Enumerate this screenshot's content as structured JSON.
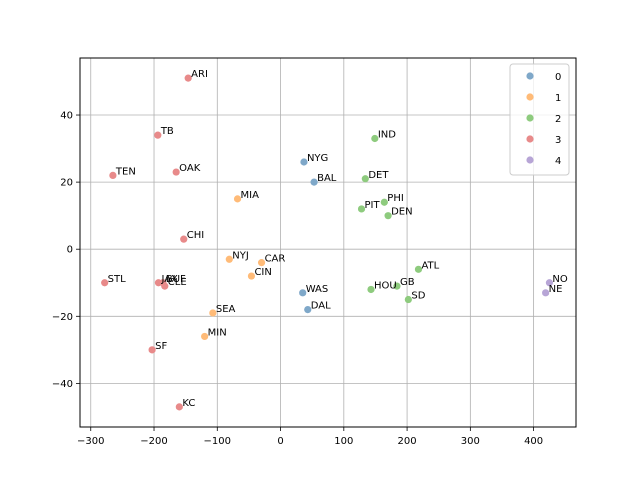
{
  "chart_data": {
    "type": "scatter",
    "title": "",
    "xlabel": "",
    "ylabel": "",
    "xlim": [
      -317,
      467
    ],
    "ylim": [
      -53,
      57
    ],
    "xticks": [
      -300,
      -200,
      -100,
      0,
      100,
      200,
      300,
      400
    ],
    "yticks": [
      -40,
      -20,
      0,
      20,
      40
    ],
    "grid": true,
    "legend_position": "top-right",
    "series": [
      {
        "name": "0",
        "color": "#7fa8c9",
        "points": [
          {
            "label": "NYG",
            "x": 37,
            "y": 26
          },
          {
            "label": "BAL",
            "x": 53,
            "y": 20
          },
          {
            "label": "WAS",
            "x": 35,
            "y": -13
          },
          {
            "label": "DAL",
            "x": 43,
            "y": -18
          }
        ]
      },
      {
        "name": "1",
        "color": "#ffbb78",
        "points": [
          {
            "label": "MIA",
            "x": -68,
            "y": 15
          },
          {
            "label": "NYJ",
            "x": -81,
            "y": -3
          },
          {
            "label": "CAR",
            "x": -30,
            "y": -4
          },
          {
            "label": "CIN",
            "x": -46,
            "y": -8
          },
          {
            "label": "SEA",
            "x": -107,
            "y": -19
          },
          {
            "label": "MIN",
            "x": -120,
            "y": -26
          }
        ]
      },
      {
        "name": "2",
        "color": "#8ecb7e",
        "points": [
          {
            "label": "IND",
            "x": 149,
            "y": 33
          },
          {
            "label": "DET",
            "x": 134,
            "y": 21
          },
          {
            "label": "PHI",
            "x": 164,
            "y": 14
          },
          {
            "label": "PIT",
            "x": 128,
            "y": 12
          },
          {
            "label": "DEN",
            "x": 170,
            "y": 10
          },
          {
            "label": "ATL",
            "x": 218,
            "y": -6
          },
          {
            "label": "GB",
            "x": 184,
            "y": -11
          },
          {
            "label": "HOU",
            "x": 143,
            "y": -12
          },
          {
            "label": "SD",
            "x": 202,
            "y": -15
          }
        ]
      },
      {
        "name": "3",
        "color": "#e88a8a",
        "points": [
          {
            "label": "ARI",
            "x": -146,
            "y": 51
          },
          {
            "label": "TB",
            "x": -194,
            "y": 34
          },
          {
            "label": "TEN",
            "x": -265,
            "y": 22
          },
          {
            "label": "OAK",
            "x": -165,
            "y": 23
          },
          {
            "label": "CHI",
            "x": -153,
            "y": 3
          },
          {
            "label": "STL",
            "x": -278,
            "y": -10
          },
          {
            "label": "JAX",
            "x": -193,
            "y": -10
          },
          {
            "label": "BUF",
            "x": -186,
            "y": -10
          },
          {
            "label": "CLE",
            "x": -183,
            "y": -11
          },
          {
            "label": "SF",
            "x": -203,
            "y": -30
          },
          {
            "label": "KC",
            "x": -160,
            "y": -47
          }
        ]
      },
      {
        "name": "4",
        "color": "#b7a5d6",
        "points": [
          {
            "label": "NO",
            "x": 425,
            "y": -10
          },
          {
            "label": "NE",
            "x": 419,
            "y": -13
          }
        ]
      }
    ]
  }
}
